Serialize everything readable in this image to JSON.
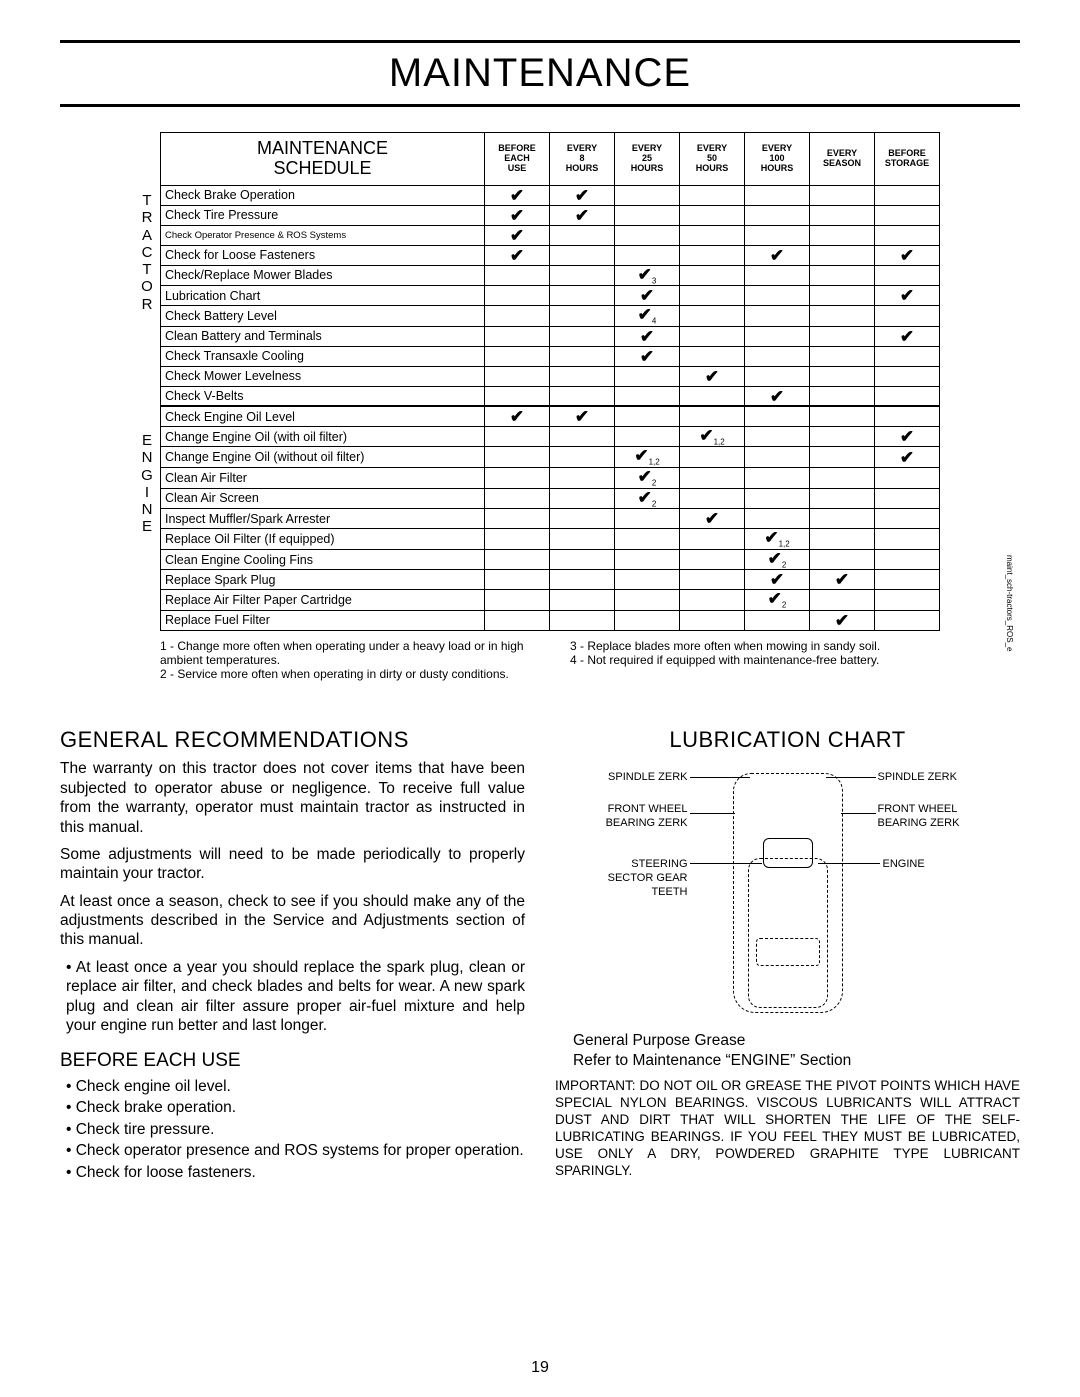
{
  "page_title": "MAINTENANCE",
  "page_number": "19",
  "side_text": "maint_sch-tractors_ROS_e",
  "schedule": {
    "title_line1": "MAINTENANCE",
    "title_line2": "SCHEDULE",
    "columns": [
      "BEFORE\nEACH\nUSE",
      "EVERY\n8\nHOURS",
      "EVERY\n25\nHOURS",
      "EVERY\n50\nHOURS",
      "EVERY\n100\nHOURS",
      "EVERY\nSEASON",
      "BEFORE\nSTORAGE"
    ],
    "side_label_top": "TRACTOR",
    "side_label_bottom": "ENGINE",
    "rows_tractor": [
      {
        "task": "Check Brake Operation",
        "marks": [
          "✔",
          "✔",
          "",
          "",
          "",
          "",
          ""
        ]
      },
      {
        "task": "Check Tire Pressure",
        "marks": [
          "✔",
          "✔",
          "",
          "",
          "",
          "",
          ""
        ]
      },
      {
        "task": "Check Operator Presence & ROS Systems",
        "small": true,
        "marks": [
          "✔",
          "",
          "",
          "",
          "",
          "",
          ""
        ]
      },
      {
        "task": "Check for Loose Fasteners",
        "marks": [
          "✔",
          "",
          "",
          "",
          "✔",
          "",
          "✔"
        ]
      },
      {
        "task": "Check/Replace Mower Blades",
        "marks": [
          "",
          "",
          "✔|3",
          "",
          "",
          "",
          ""
        ]
      },
      {
        "task": "Lubrication Chart",
        "marks": [
          "",
          "",
          "✔",
          "",
          "",
          "",
          "✔"
        ]
      },
      {
        "task": "Check Battery Level",
        "marks": [
          "",
          "",
          "✔|4",
          "",
          "",
          "",
          ""
        ]
      },
      {
        "task": "Clean Battery and Terminals",
        "marks": [
          "",
          "",
          "✔",
          "",
          "",
          "",
          "✔"
        ]
      },
      {
        "task": "Check Transaxle Cooling",
        "marks": [
          "",
          "",
          "✔",
          "",
          "",
          "",
          ""
        ]
      },
      {
        "task": "Check Mower Levelness",
        "marks": [
          "",
          "",
          "",
          "✔",
          "",
          "",
          ""
        ]
      },
      {
        "task": "Check V-Belts",
        "marks": [
          "",
          "",
          "",
          "",
          "✔",
          "",
          ""
        ]
      }
    ],
    "rows_engine": [
      {
        "task": "Check Engine Oil Level",
        "marks": [
          "✔",
          "✔",
          "",
          "",
          "",
          "",
          ""
        ]
      },
      {
        "task": "Change Engine Oil (with oil filter)",
        "marks": [
          "",
          "",
          "",
          "✔|1,2",
          "",
          "",
          "✔"
        ]
      },
      {
        "task": "Change Engine Oil (without oil filter)",
        "marks": [
          "",
          "",
          "✔|1,2",
          "",
          "",
          "",
          "✔"
        ]
      },
      {
        "task": "Clean Air Filter",
        "marks": [
          "",
          "",
          "✔|2",
          "",
          "",
          "",
          ""
        ]
      },
      {
        "task": "Clean Air Screen",
        "marks": [
          "",
          "",
          "✔|2",
          "",
          "",
          "",
          ""
        ]
      },
      {
        "task": "Inspect Muffler/Spark Arrester",
        "marks": [
          "",
          "",
          "",
          "✔",
          "",
          "",
          ""
        ]
      },
      {
        "task": "Replace Oil Filter (If equipped)",
        "marks": [
          "",
          "",
          "",
          "",
          "✔|1,2",
          "",
          ""
        ]
      },
      {
        "task": "Clean Engine Cooling Fins",
        "marks": [
          "",
          "",
          "",
          "",
          "✔|2",
          "",
          ""
        ]
      },
      {
        "task": "Replace Spark Plug",
        "marks": [
          "",
          "",
          "",
          "",
          "✔",
          "✔",
          ""
        ]
      },
      {
        "task": "Replace Air Filter Paper Cartridge",
        "marks": [
          "",
          "",
          "",
          "",
          "✔|2",
          "",
          ""
        ]
      },
      {
        "task": "Replace Fuel Filter",
        "marks": [
          "",
          "",
          "",
          "",
          "",
          "✔",
          ""
        ]
      }
    ],
    "footnotes_left": [
      "1 - Change more often when operating under a heavy load or in high ambient temperatures.",
      "2 - Service more often when operating in dirty or dusty conditions."
    ],
    "footnotes_right": [
      "3 - Replace blades more often when mowing in sandy soil.",
      "4 - Not required if equipped with maintenance-free battery."
    ]
  },
  "left_col": {
    "h2": "GENERAL RECOMMENDATIONS",
    "p1": "The warranty on this tractor does not cover items that have been subjected to operator abuse or negligence. To receive full value from the warranty, operator must maintain tractor as instructed in this manual.",
    "p2": "Some adjustments will need to be made periodically to properly maintain your tractor.",
    "p3": "At least once a season, check to see if you should make any of the adjustments described in the Service and Adjustments section of this manual.",
    "bullet1": "At least once a year you should replace the spark plug, clean or replace air filter, and check blades and belts for wear.  A new spark plug and clean air filter assure proper air-fuel mixture and help your engine run better and last longer.",
    "h3": "BEFORE EACH USE",
    "checks": [
      "Check engine oil level.",
      "Check brake operation.",
      "Check tire pressure.",
      "Check operator presence and ROS systems for proper operation.",
      "Check for loose fasteners."
    ]
  },
  "right_col": {
    "h2": "LUBRICATION CHART",
    "labels": {
      "sz_l": "SPINDLE ZERK",
      "sz_r": "SPINDLE ZERK",
      "fw_l": "FRONT WHEEL\nBEARING ZERK",
      "fw_r": "FRONT WHEEL\nBEARING ZERK",
      "st": "STEERING\nSECTOR GEAR\nTEETH",
      "eng": "ENGINE"
    },
    "cap1": "General Purpose Grease",
    "cap2": "Refer to Maintenance “ENGINE” Section",
    "important": "IMPORTANT:  DO NOT OIL OR GREASE THE PIVOT POINTS WHICH HAVE SPECIAL NYLON BEARINGS.  VISCOUS LUBRICANTS WILL ATTRACT DUST AND DIRT THAT WILL SHORTEN THE LIFE OF THE SELF-LUBRICATING BEARINGS.  IF YOU FEEL THEY MUST BE LUBRICATED, USE ONLY A DRY, POWDERED GRAPHITE TYPE LUBRICANT SPARINGLY."
  }
}
